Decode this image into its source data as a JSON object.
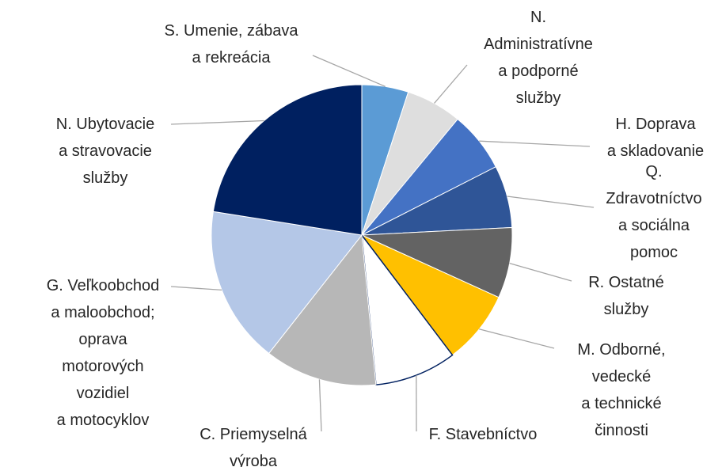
{
  "chart_data": {
    "type": "pie",
    "categories": [
      "S. Umenie, zábava\na rekreácia",
      "N.\nAdministratívne\na podporné\nslužby",
      "H. Doprava\na skladovanie",
      "Q.\nZdravotníctvo\na sociálna\npomoc",
      "R. Ostatné\nslužby",
      "M. Odborné,\nvedecké\na technické\nčinnosti",
      "F. Stavebníctvo",
      "C. Priemyselná\nvýroba",
      "G. Veľkoobchod\na maloobchod;\noprava\nmotorových\nvozidiel\na motocyklov",
      "N. Ubytovacie\na stravovacie\nslužby"
    ],
    "values": [
      5,
      6,
      6.5,
      6.7,
      7.6,
      7.9,
      8.8,
      12.1,
      16.9,
      22.5
    ],
    "colors": [
      "#5b9bd5",
      "#dedede",
      "#4472c4",
      "#2f5597",
      "#636363",
      "#ffc000",
      "#ffffff",
      "#b7b7b7",
      "#b4c7e7",
      "#002060"
    ]
  }
}
